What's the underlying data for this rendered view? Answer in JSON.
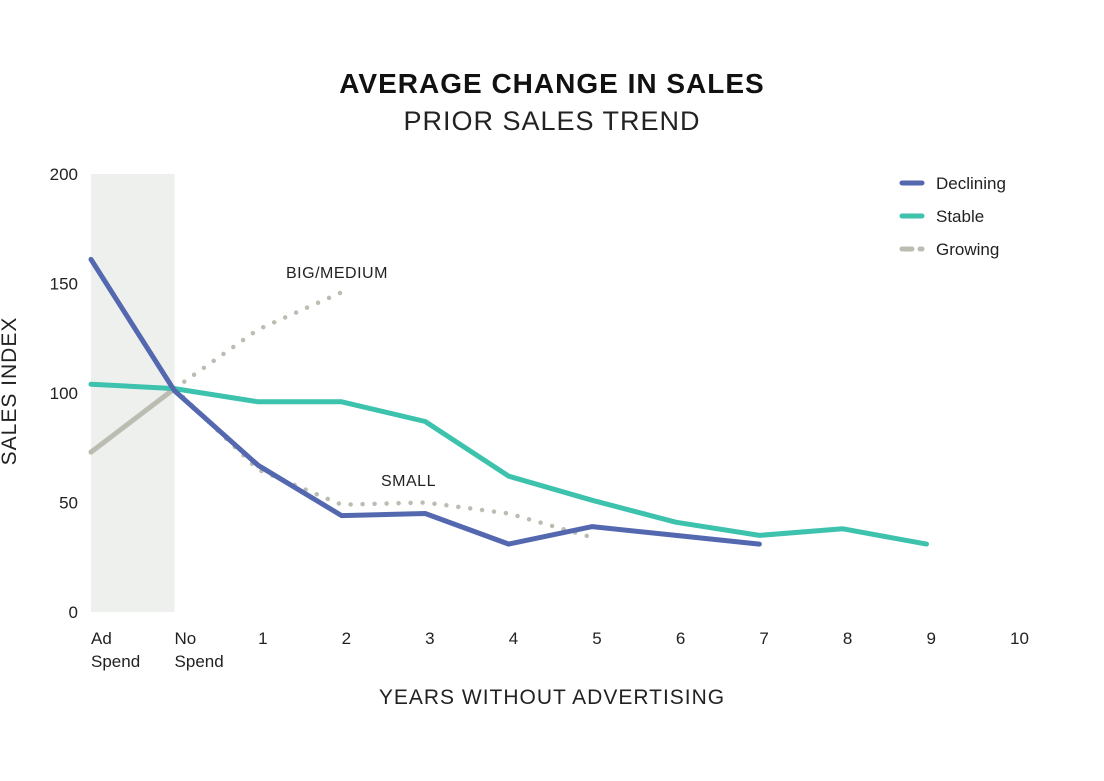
{
  "chart_data": {
    "type": "line",
    "title": "AVERAGE CHANGE IN SALES",
    "subtitle": "PRIOR SALES TREND",
    "xlabel": "YEARS WITHOUT ADVERTISING",
    "ylabel": "SALES INDEX",
    "ylim": [
      0,
      200
    ],
    "yticks": [
      0,
      50,
      100,
      150,
      200
    ],
    "x_ticks": [
      {
        "x": -1,
        "lines": [
          "Ad",
          "Spend"
        ]
      },
      {
        "x": 0,
        "lines": [
          "No",
          "Spend"
        ]
      },
      {
        "x": 1,
        "lines": [
          "1"
        ]
      },
      {
        "x": 2,
        "lines": [
          "2"
        ]
      },
      {
        "x": 3,
        "lines": [
          "3"
        ]
      },
      {
        "x": 4,
        "lines": [
          "4"
        ]
      },
      {
        "x": 5,
        "lines": [
          "5"
        ]
      },
      {
        "x": 6,
        "lines": [
          "6"
        ]
      },
      {
        "x": 7,
        "lines": [
          "7"
        ]
      },
      {
        "x": 8,
        "lines": [
          "8"
        ]
      },
      {
        "x": 9,
        "lines": [
          "9"
        ]
      },
      {
        "x": 10,
        "lines": [
          "10"
        ]
      }
    ],
    "xlim": [
      -1,
      10
    ],
    "shaded_region": [
      -1,
      0
    ],
    "grid": false,
    "legend_position": "top-right",
    "series": [
      {
        "name": "Declining",
        "color": "#5468b0",
        "style": "solid",
        "points": [
          [
            -1,
            161
          ],
          [
            0,
            101
          ],
          [
            1,
            67
          ],
          [
            2,
            44
          ],
          [
            3,
            45
          ],
          [
            4,
            31
          ],
          [
            5,
            39
          ],
          [
            6,
            35
          ],
          [
            7,
            31
          ]
        ]
      },
      {
        "name": "Stable",
        "color": "#3dc2ad",
        "style": "solid",
        "points": [
          [
            -1,
            104
          ],
          [
            0,
            102
          ],
          [
            1,
            96
          ],
          [
            2,
            96
          ],
          [
            3,
            87
          ],
          [
            4,
            62
          ],
          [
            5,
            51
          ],
          [
            6,
            41
          ],
          [
            7,
            35
          ],
          [
            8,
            38
          ],
          [
            9,
            31
          ]
        ]
      },
      {
        "name": "Growing",
        "color": "#bbbcb2",
        "style": "solid",
        "points": [
          [
            -1,
            73
          ],
          [
            0,
            102
          ]
        ]
      }
    ],
    "dotted_series": [
      {
        "label": "BIG/MEDIUM",
        "color": "#bbbcb2",
        "points": [
          [
            0,
            102
          ],
          [
            1,
            129
          ],
          [
            2,
            146
          ]
        ]
      },
      {
        "label": "SMALL",
        "color": "#bbbcb2",
        "points": [
          [
            0,
            102
          ],
          [
            1,
            65
          ],
          [
            2,
            49
          ],
          [
            3,
            50
          ],
          [
            4,
            45
          ],
          [
            5,
            34
          ]
        ]
      }
    ]
  }
}
